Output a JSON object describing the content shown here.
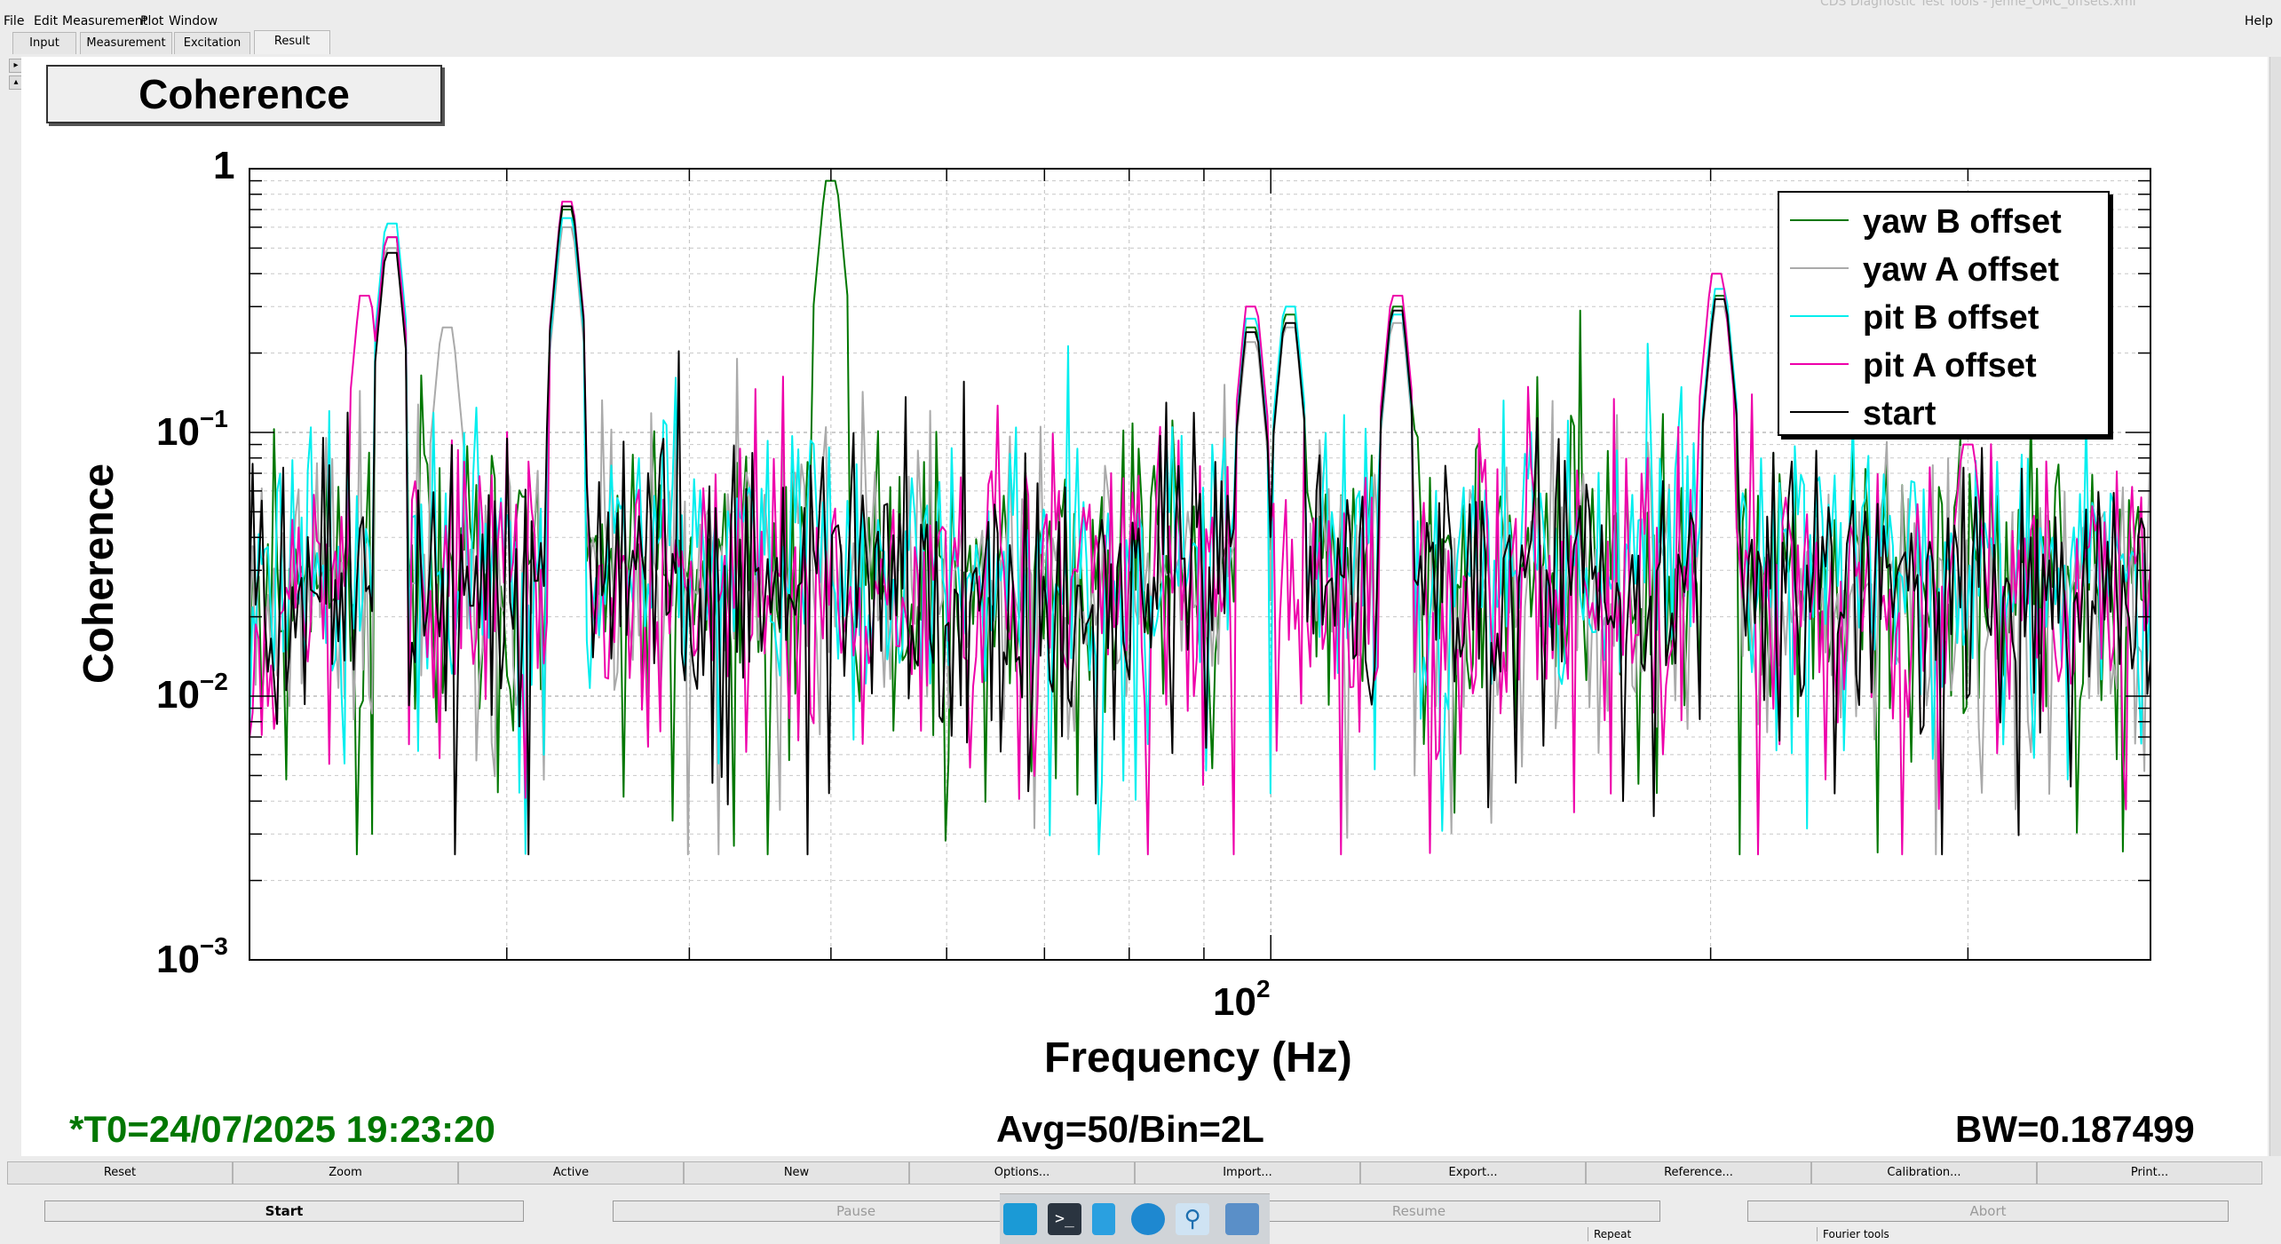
{
  "window": {
    "title": "CDS Diagnostic Test Tools - jenne_OMC_offsets.xml"
  },
  "menu": {
    "file": "File",
    "edit": "Edit",
    "measurement": "Measurement",
    "plot": "Plot",
    "window": "Window",
    "help": "Help"
  },
  "tabs": [
    "Input",
    "Measurement",
    "Excitation",
    "Result"
  ],
  "plot_title": "Coherence",
  "legend": [
    {
      "label": "yaw B offset",
      "color": "#007700"
    },
    {
      "label": "yaw A offset",
      "color": "#aaaaaa"
    },
    {
      "label": "pit B offset",
      "color": "#00eeee"
    },
    {
      "label": "pit A offset",
      "color": "#ee00aa"
    },
    {
      "label": "start",
      "color": "#000000"
    }
  ],
  "footer": {
    "t0": "*T0=24/07/2025 19:23:20",
    "avg": "Avg=50/Bin=2L",
    "bw": "BW=0.187499",
    "t0_color": "#007700"
  },
  "buttons_row1": [
    "Reset",
    "Zoom",
    "Active",
    "New",
    "Options...",
    "Import...",
    "Export...",
    "Reference...",
    "Calibration...",
    "Print..."
  ],
  "buttons_row2": {
    "start": "Start",
    "pause": "Pause",
    "resume": "Resume",
    "abort": "Abort"
  },
  "status": {
    "repeat": "Repeat",
    "fourier": "Fourier tools"
  },
  "taskbar_icons": [
    "desktop-icon",
    "terminal-icon",
    "editor-icon",
    "browser-icon",
    "search-icon",
    "folder-icon"
  ],
  "chart_data": {
    "type": "line",
    "xlabel": "Frequency (Hz)",
    "ylabel": "Coherence",
    "x_scale": "log",
    "y_scale": "log",
    "xlim": [
      20,
      400
    ],
    "ylim": [
      0.001,
      1
    ],
    "x_tick_labels": [
      "10",
      "2"
    ],
    "y_tick_labels": [
      {
        "base": "1",
        "exp": ""
      },
      {
        "base": "10",
        "exp": "−1"
      },
      {
        "base": "10",
        "exp": "−2"
      },
      {
        "base": "10",
        "exp": "−3"
      }
    ],
    "grid": true,
    "legend_position": "top-right",
    "series": [
      {
        "name": "yaw B offset",
        "color": "#007700",
        "peaks": [
          [
            25,
            0.55
          ],
          [
            33,
            0.7
          ],
          [
            50,
            0.9
          ],
          [
            97,
            0.25
          ],
          [
            103,
            0.28
          ],
          [
            122,
            0.3
          ],
          [
            203,
            0.33
          ]
        ],
        "baseline": 0.028,
        "seed": 11
      },
      {
        "name": "yaw A offset",
        "color": "#aaaaaa",
        "peaks": [
          [
            25,
            0.5
          ],
          [
            27.3,
            0.25
          ],
          [
            33,
            0.6
          ],
          [
            97,
            0.22
          ],
          [
            103,
            0.25
          ],
          [
            122,
            0.26
          ],
          [
            203,
            0.3
          ]
        ],
        "baseline": 0.026,
        "seed": 23
      },
      {
        "name": "pit B offset",
        "color": "#00eeee",
        "peaks": [
          [
            25,
            0.62
          ],
          [
            33,
            0.65
          ],
          [
            97,
            0.27
          ],
          [
            103,
            0.3
          ],
          [
            122,
            0.28
          ],
          [
            203,
            0.35
          ]
        ],
        "baseline": 0.033,
        "seed": 37
      },
      {
        "name": "pit A offset",
        "color": "#ee00aa",
        "peaks": [
          [
            24,
            0.33
          ],
          [
            25,
            0.55
          ],
          [
            33,
            0.75
          ],
          [
            97,
            0.3
          ],
          [
            122,
            0.33
          ],
          [
            202,
            0.4
          ],
          [
            300,
            0.09
          ]
        ],
        "baseline": 0.025,
        "seed": 53
      },
      {
        "name": "start",
        "color": "#000000",
        "peaks": [
          [
            25,
            0.48
          ],
          [
            33,
            0.72
          ],
          [
            97,
            0.24
          ],
          [
            103,
            0.26
          ],
          [
            122,
            0.29
          ],
          [
            203,
            0.32
          ]
        ],
        "baseline": 0.027,
        "seed": 71
      }
    ]
  }
}
